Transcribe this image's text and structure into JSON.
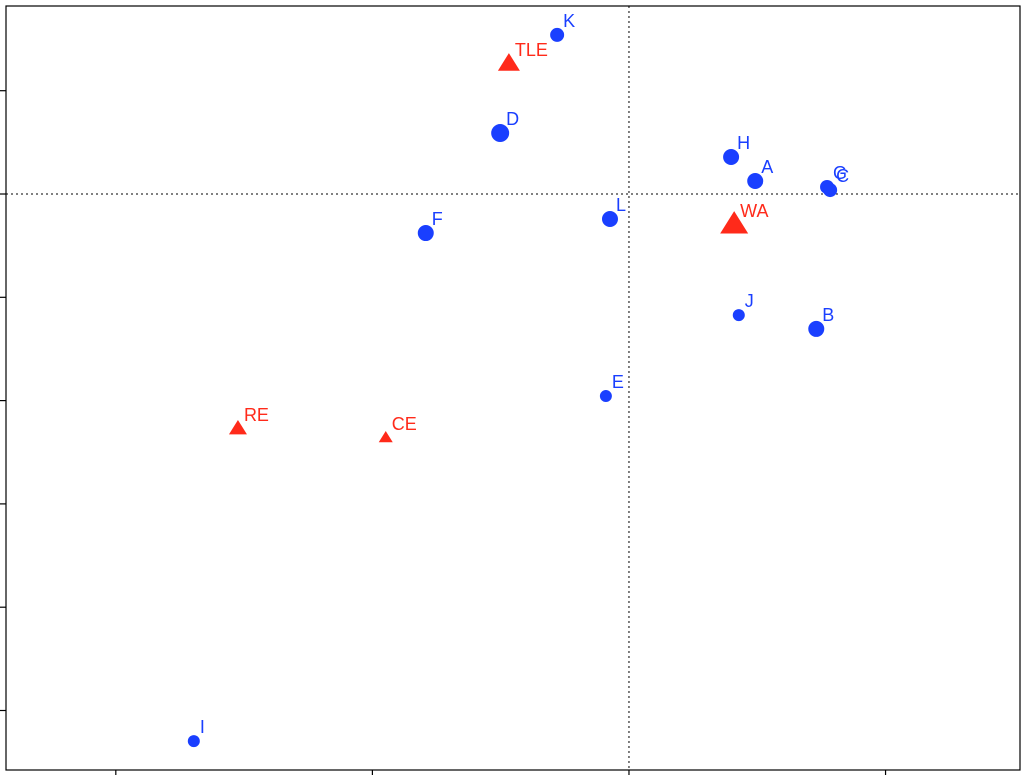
{
  "chart_data": {
    "type": "scatter",
    "xlim": [
      -1.214,
      0.762
    ],
    "ylim": [
      -2.788,
      0.91
    ],
    "xticks": [
      -1,
      -0.5,
      0,
      0.5
    ],
    "yticks": [
      0.5,
      0,
      -0.5,
      -1,
      -1.5,
      -2,
      -2.5
    ],
    "vline": 0,
    "hline": 0,
    "series": [
      {
        "color": "#1a3fff",
        "marker": "circle",
        "labels": [
          "K",
          "D",
          "H",
          "A",
          "G",
          "C",
          "L",
          "F",
          "J",
          "B",
          "E",
          "I"
        ],
        "x": [
          -0.14,
          -0.251,
          0.199,
          0.246,
          0.386,
          0.392,
          -0.037,
          -0.396,
          0.214,
          0.365,
          -0.045,
          -0.848
        ],
        "values": [
          0.77,
          0.295,
          0.179,
          0.063,
          0.034,
          0.019,
          -0.121,
          -0.189,
          -0.586,
          -0.653,
          -0.978,
          -2.648
        ],
        "sizes": [
          7,
          9,
          8,
          8,
          7,
          7,
          8,
          8,
          6,
          8,
          6,
          6
        ]
      },
      {
        "color": "#ff2a1a",
        "marker": "triangle",
        "labels": [
          "TLE",
          "WA",
          "RE",
          "CE"
        ],
        "x": [
          -0.234,
          0.205,
          -0.762,
          -0.474
        ],
        "values": [
          0.629,
          -0.15,
          -1.137,
          -1.181
        ],
        "sizes": [
          11,
          14,
          9,
          7
        ]
      }
    ]
  }
}
